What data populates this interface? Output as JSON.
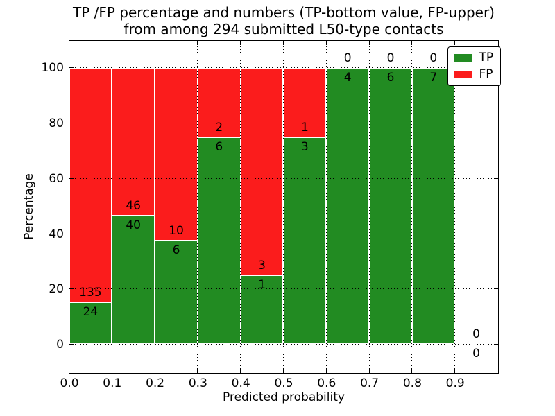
{
  "chart_data": {
    "type": "bar",
    "stacked": true,
    "title_line1": "TP /FP percentage and numbers (TP-bottom value, FP-upper)",
    "title_line2": "from among 294 submitted L50-type contacts",
    "xlabel": "Predicted probability",
    "ylabel": "Percentage",
    "x_tick_labels": [
      "0.0",
      "0.1",
      "0.2",
      "0.3",
      "0.4",
      "0.5",
      "0.6",
      "0.7",
      "0.8",
      "0.9"
    ],
    "y_ticks": [
      0,
      20,
      40,
      60,
      80,
      100
    ],
    "xlim": [
      0.0,
      1.0
    ],
    "ylim": [
      -10.3,
      109.9
    ],
    "bin_width": 0.1,
    "grid": "dotted",
    "legend_position": "upper right",
    "colors": {
      "tp": "#228b22",
      "fp": "#fb1c1c",
      "bar_edge": "#ffffff"
    },
    "legend": [
      {
        "label": "TP",
        "color": "#228b22"
      },
      {
        "label": "FP",
        "color": "#fb1c1c"
      }
    ],
    "bins": [
      {
        "x0": 0.0,
        "tp": 24,
        "fp": 135
      },
      {
        "x0": 0.1,
        "tp": 40,
        "fp": 46
      },
      {
        "x0": 0.2,
        "tp": 6,
        "fp": 10
      },
      {
        "x0": 0.3,
        "tp": 6,
        "fp": 2
      },
      {
        "x0": 0.4,
        "tp": 1,
        "fp": 3
      },
      {
        "x0": 0.5,
        "tp": 3,
        "fp": 1
      },
      {
        "x0": 0.6,
        "tp": 4,
        "fp": 0
      },
      {
        "x0": 0.7,
        "tp": 6,
        "fp": 0
      },
      {
        "x0": 0.8,
        "tp": 7,
        "fp": 0
      },
      {
        "x0": 0.9,
        "tp": 0,
        "fp": 0
      }
    ]
  }
}
